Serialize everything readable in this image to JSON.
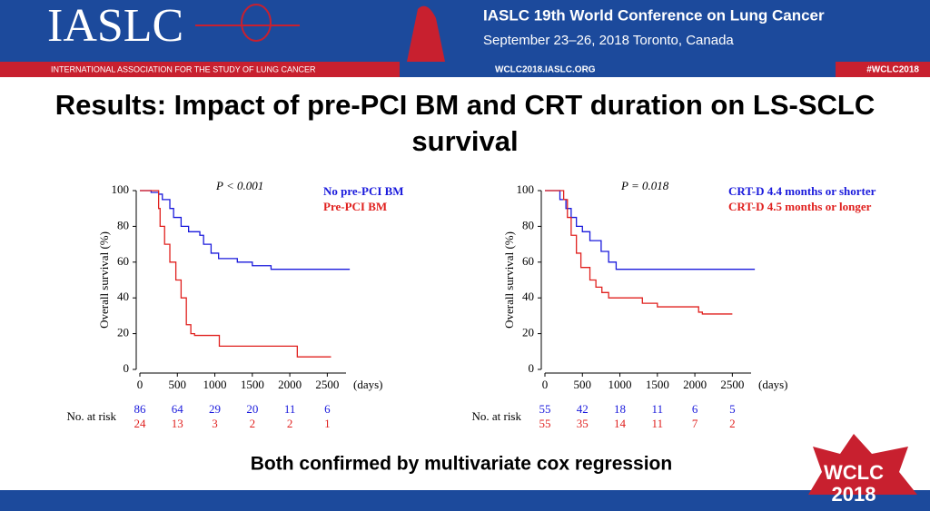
{
  "header": {
    "logo": "IASLC",
    "org": "INTERNATIONAL ASSOCIATION FOR THE STUDY OF LUNG CANCER",
    "conference": "IASLC  19th World Conference on Lung Cancer",
    "dates": "September 23–26, 2018  Toronto, Canada",
    "url": "WCLC2018.IASLC.ORG",
    "hashtag": "#WCLC2018"
  },
  "title": "Results: Impact of pre-PCI BM and CRT duration on LS-SCLC survival",
  "footer": "Both confirmed by multivariate cox regression",
  "badge": {
    "line1": "WCLC",
    "line2": "2018"
  },
  "chart_data": [
    {
      "type": "line",
      "drawstyle": "steps-post",
      "annotation": "P < 0.001",
      "xlabel": "(days)",
      "ylabel": "Overall survival (%)",
      "xlim": [
        0,
        2750
      ],
      "ylim": [
        0,
        100
      ],
      "xticks": [
        0,
        500,
        1000,
        1500,
        2000,
        2500
      ],
      "yticks": [
        0,
        20,
        40,
        60,
        80,
        100
      ],
      "series": [
        {
          "name": "No pre-PCI BM",
          "color": "#1a1adc",
          "x": [
            0,
            150,
            250,
            300,
            400,
            450,
            550,
            650,
            800,
            850,
            950,
            1050,
            1300,
            1500,
            1750,
            2800
          ],
          "values": [
            100,
            99,
            98,
            95,
            90,
            85,
            80,
            77,
            75,
            70,
            65,
            62,
            60,
            58,
            56,
            56
          ]
        },
        {
          "name": "Pre-PCI BM",
          "color": "#e0201e",
          "x": [
            0,
            250,
            270,
            330,
            400,
            480,
            550,
            620,
            680,
            730,
            1060,
            2100,
            2550
          ],
          "values": [
            100,
            90,
            80,
            70,
            60,
            50,
            40,
            25,
            20,
            19,
            13,
            7,
            7
          ]
        }
      ],
      "risk_table": {
        "label": "No. at risk",
        "rows": [
          [
            86,
            64,
            29,
            20,
            11,
            6
          ],
          [
            24,
            13,
            3,
            2,
            2,
            1
          ]
        ]
      }
    },
    {
      "type": "line",
      "drawstyle": "steps-post",
      "annotation": "P = 0.018",
      "xlabel": "(days)",
      "ylabel": "Overall survival (%)",
      "xlim": [
        0,
        2750
      ],
      "ylim": [
        0,
        100
      ],
      "xticks": [
        0,
        500,
        1000,
        1500,
        2000,
        2500
      ],
      "yticks": [
        0,
        20,
        40,
        60,
        80,
        100
      ],
      "series": [
        {
          "name": "CRT-D 4.4 months or shorter",
          "color": "#1a1adc",
          "x": [
            0,
            200,
            280,
            350,
            420,
            500,
            600,
            750,
            850,
            950,
            1050,
            2800
          ],
          "values": [
            100,
            95,
            90,
            85,
            80,
            77,
            72,
            66,
            60,
            56,
            56,
            56
          ]
        },
        {
          "name": "CRT-D 4.5 months or longer",
          "color": "#e0201e",
          "x": [
            0,
            250,
            300,
            350,
            420,
            480,
            600,
            680,
            760,
            850,
            1300,
            1500,
            2050,
            2100,
            2500
          ],
          "values": [
            100,
            95,
            85,
            75,
            65,
            57,
            50,
            46,
            43,
            40,
            37,
            35,
            32,
            31,
            31
          ]
        }
      ],
      "risk_table": {
        "label": "No. at risk",
        "rows": [
          [
            55,
            42,
            18,
            11,
            6,
            5
          ],
          [
            55,
            35,
            14,
            11,
            7,
            2
          ]
        ]
      }
    }
  ]
}
